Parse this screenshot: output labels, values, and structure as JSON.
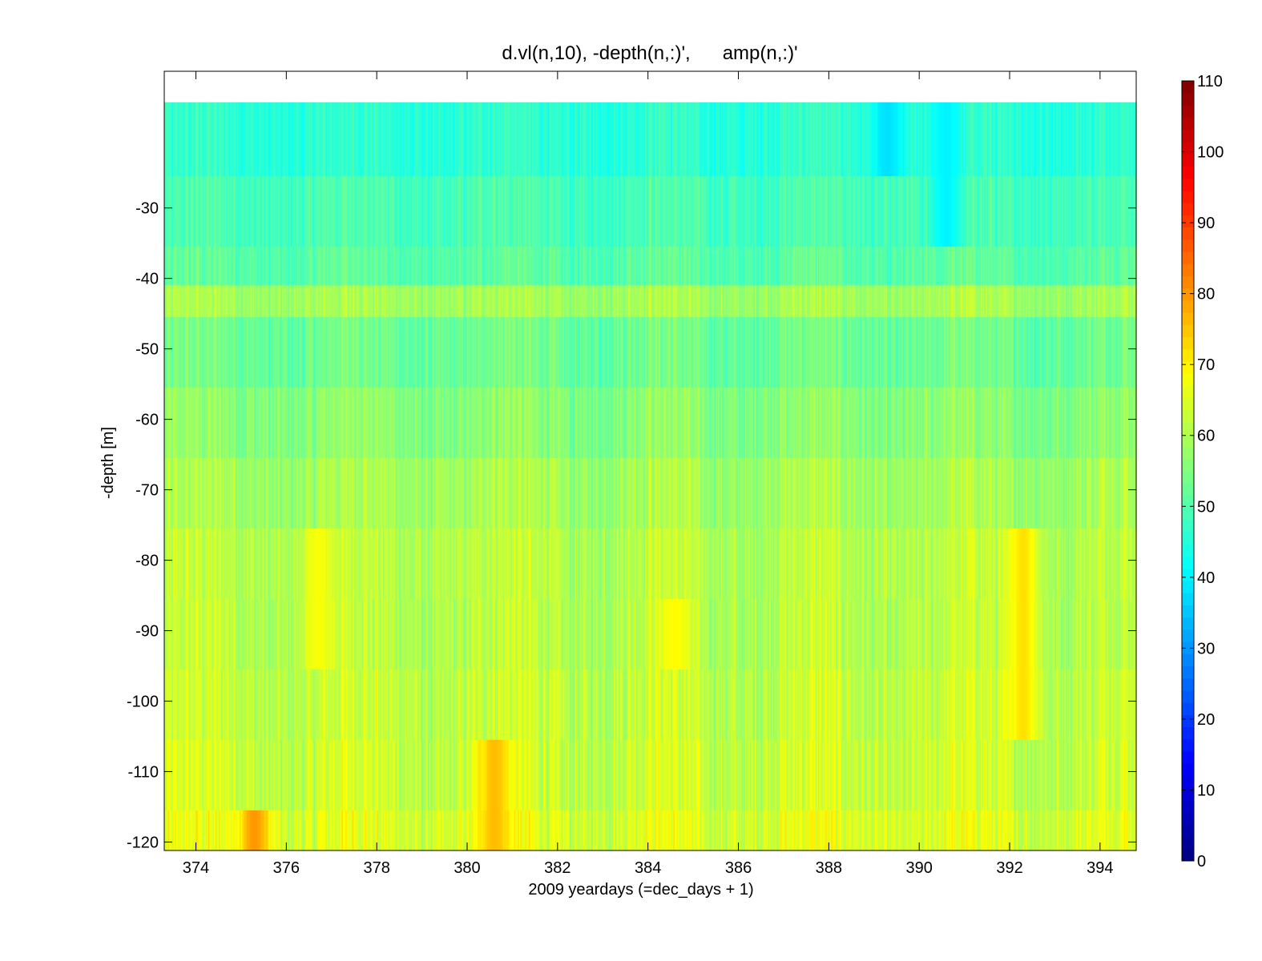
{
  "chart_data": {
    "type": "heatmap",
    "title": "d.vl(n,10), -depth(n,:)',      amp(n,:)'",
    "xlabel": "2009 yeardays (=dec_days + 1)",
    "ylabel": "-depth [m]",
    "xlim": [
      373.3,
      394.8
    ],
    "ylim": [
      -121.2,
      -10.6
    ],
    "x_ticks": [
      374,
      376,
      378,
      380,
      382,
      384,
      386,
      388,
      390,
      392,
      394
    ],
    "y_ticks": [
      -30,
      -40,
      -50,
      -60,
      -70,
      -80,
      -90,
      -100,
      -110,
      -120
    ],
    "colormap": "jet",
    "clim": [
      0,
      110
    ],
    "colorbar_ticks": [
      0,
      10,
      20,
      30,
      40,
      50,
      60,
      70,
      80,
      90,
      100,
      110
    ],
    "grid": false,
    "bins": [
      {
        "depth": -20.5,
        "mean_amp": 46
      },
      {
        "depth": -30.5,
        "mean_amp": 49
      },
      {
        "depth": -40.5,
        "mean_amp": 51
      },
      {
        "depth": -43.5,
        "mean_amp": 59
      },
      {
        "depth": -50.5,
        "mean_amp": 53
      },
      {
        "depth": -60.5,
        "mean_amp": 56
      },
      {
        "depth": -70.5,
        "mean_amp": 59
      },
      {
        "depth": -80.5,
        "mean_amp": 61
      },
      {
        "depth": -90.5,
        "mean_amp": 61
      },
      {
        "depth": -100.5,
        "mean_amp": 62
      },
      {
        "depth": -110.5,
        "mean_amp": 63
      },
      {
        "depth": -118.5,
        "mean_amp": 65
      }
    ],
    "hotspots": [
      {
        "x": 375.3,
        "depth_top": -116,
        "depth_bottom": -121,
        "amp": 80
      },
      {
        "x": 380.6,
        "depth_top": -106,
        "depth_bottom": -121,
        "amp": 76
      },
      {
        "x": 392.3,
        "depth_top": -76,
        "depth_bottom": -110,
        "amp": 72
      },
      {
        "x": 376.7,
        "depth_top": -76,
        "depth_bottom": -96,
        "amp": 68
      },
      {
        "x": 384.6,
        "depth_top": -81,
        "depth_bottom": -100,
        "amp": 69
      },
      {
        "x": 389.3,
        "depth_top": -18,
        "depth_bottom": -28,
        "amp": 38
      },
      {
        "x": 390.6,
        "depth_top": -15,
        "depth_bottom": -36,
        "amp": 40
      }
    ]
  }
}
